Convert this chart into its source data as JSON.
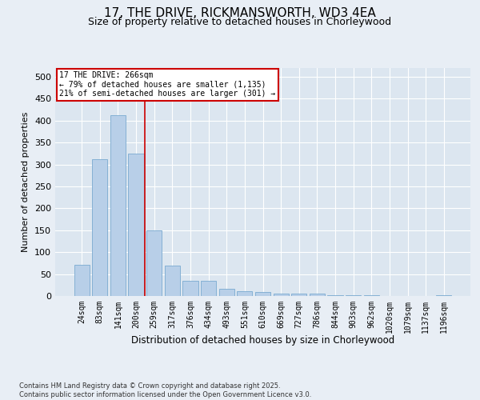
{
  "title_line1": "17, THE DRIVE, RICKMANSWORTH, WD3 4EA",
  "title_line2": "Size of property relative to detached houses in Chorleywood",
  "xlabel": "Distribution of detached houses by size in Chorleywood",
  "ylabel": "Number of detached properties",
  "categories": [
    "24sqm",
    "83sqm",
    "141sqm",
    "200sqm",
    "259sqm",
    "317sqm",
    "376sqm",
    "434sqm",
    "493sqm",
    "551sqm",
    "610sqm",
    "669sqm",
    "727sqm",
    "786sqm",
    "844sqm",
    "903sqm",
    "962sqm",
    "1020sqm",
    "1079sqm",
    "1137sqm",
    "1196sqm"
  ],
  "values": [
    72,
    312,
    412,
    325,
    150,
    70,
    35,
    35,
    17,
    11,
    9,
    5,
    5,
    5,
    1,
    1,
    1,
    0,
    0,
    0,
    2
  ],
  "bar_color": "#b8cfe8",
  "bar_edge_color": "#7aaad0",
  "vline_color": "#cc0000",
  "annotation_title": "17 THE DRIVE: 266sqm",
  "annotation_line2": "← 79% of detached houses are smaller (1,135)",
  "annotation_line3": "21% of semi-detached houses are larger (301) →",
  "annotation_box_facecolor": "#ffffff",
  "annotation_box_edgecolor": "#cc0000",
  "footer_line1": "Contains HM Land Registry data © Crown copyright and database right 2025.",
  "footer_line2": "Contains public sector information licensed under the Open Government Licence v3.0.",
  "ylim": [
    0,
    520
  ],
  "yticks": [
    0,
    50,
    100,
    150,
    200,
    250,
    300,
    350,
    400,
    450,
    500
  ],
  "bg_color": "#e8eef5",
  "plot_bg_color": "#dce6f0",
  "title_fontsize": 11,
  "subtitle_fontsize": 9,
  "tick_fontsize": 7,
  "xlabel_fontsize": 8.5,
  "ylabel_fontsize": 8
}
